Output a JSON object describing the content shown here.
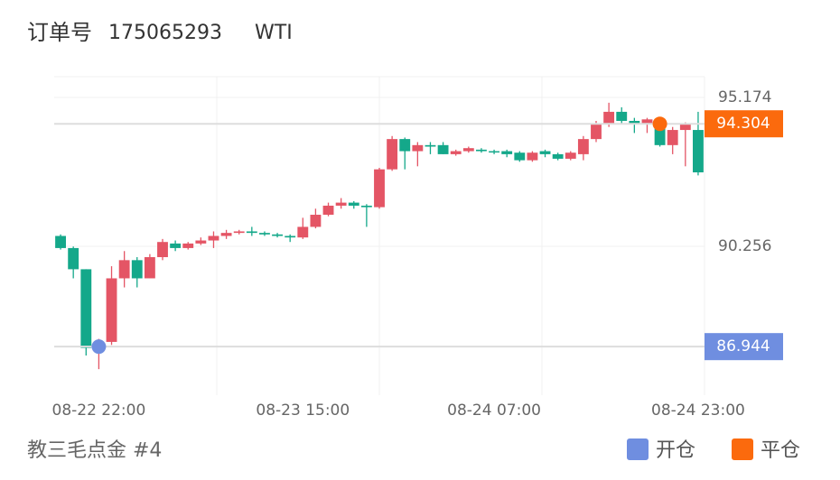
{
  "header": {
    "order_label": "订单号",
    "order_no": "175065293",
    "symbol": "WTI"
  },
  "footer": "教三毛点金 #4",
  "chart_data": {
    "type": "candlestick",
    "categories": [
      null,
      null,
      null,
      "08-22 22:00",
      null,
      null,
      null,
      null,
      null,
      null,
      null,
      null,
      null,
      null,
      null,
      null,
      null,
      null,
      null,
      "08-23 15:00",
      null,
      null,
      null,
      null,
      null,
      null,
      null,
      null,
      null,
      null,
      null,
      null,
      null,
      null,
      "08-24 07:00",
      null,
      null,
      null,
      null,
      null,
      null,
      null,
      null,
      null,
      null,
      null,
      null,
      null,
      null,
      null,
      "08-24 23:00"
    ],
    "open": [
      90.6,
      90.2,
      89.5,
      86.9,
      87.1,
      89.2,
      89.8,
      89.2,
      89.9,
      90.35,
      90.2,
      90.35,
      90.45,
      90.6,
      90.7,
      90.75,
      90.7,
      90.65,
      90.6,
      90.55,
      90.9,
      91.3,
      91.6,
      91.7,
      91.6,
      91.55,
      92.8,
      93.8,
      93.4,
      93.6,
      93.6,
      93.3,
      93.4,
      93.45,
      93.4,
      93.4,
      93.35,
      93.1,
      93.4,
      93.3,
      93.15,
      93.3,
      93.8,
      94.3,
      94.7,
      94.4,
      94.3,
      94.4,
      93.6,
      94.1,
      94.1
    ],
    "high": [
      90.65,
      90.25,
      89.5,
      87.2,
      89.6,
      90.1,
      89.9,
      90.0,
      90.5,
      90.45,
      90.4,
      90.55,
      90.75,
      90.8,
      90.8,
      90.9,
      90.75,
      90.7,
      90.65,
      91.2,
      91.5,
      91.7,
      91.85,
      91.75,
      91.65,
      92.85,
      93.9,
      93.85,
      93.7,
      93.7,
      93.7,
      93.45,
      93.55,
      93.5,
      93.45,
      93.45,
      93.4,
      93.4,
      93.45,
      93.35,
      93.4,
      93.9,
      94.4,
      95.0,
      94.85,
      94.5,
      94.5,
      94.45,
      94.2,
      94.35,
      94.7
    ],
    "low": [
      90.15,
      89.2,
      86.65,
      86.2,
      87.0,
      88.9,
      88.9,
      89.2,
      89.8,
      90.1,
      90.15,
      90.3,
      90.2,
      90.5,
      90.65,
      90.6,
      90.6,
      90.55,
      90.4,
      90.5,
      90.85,
      91.25,
      91.5,
      91.5,
      90.9,
      91.5,
      92.75,
      92.8,
      92.9,
      93.3,
      93.3,
      93.25,
      93.35,
      93.35,
      93.3,
      93.2,
      93.05,
      93.05,
      93.2,
      93.1,
      93.1,
      93.1,
      93.7,
      94.2,
      94.3,
      94.0,
      94.0,
      93.55,
      93.3,
      92.9,
      92.6
    ],
    "close": [
      90.2,
      89.5,
      86.9,
      87.1,
      89.2,
      89.8,
      89.2,
      89.9,
      90.4,
      90.2,
      90.35,
      90.45,
      90.6,
      90.7,
      90.75,
      90.7,
      90.65,
      90.6,
      90.55,
      90.9,
      91.3,
      91.6,
      91.7,
      91.6,
      91.55,
      92.8,
      93.8,
      93.4,
      93.6,
      93.55,
      93.3,
      93.4,
      93.5,
      93.4,
      93.38,
      93.3,
      93.1,
      93.35,
      93.3,
      93.15,
      93.35,
      93.8,
      94.3,
      94.7,
      94.4,
      94.3,
      94.45,
      93.6,
      94.1,
      94.3,
      92.7
    ],
    "up_color": "#e45565",
    "down_color": "#14a88a",
    "ylim": [
      85.34,
      95.86
    ],
    "yticks": [
      95.174,
      90.256
    ],
    "markers": [
      {
        "name": "开仓",
        "color": "#6f8ee0",
        "value": 86.944,
        "index": 3
      },
      {
        "name": "平仓",
        "color": "#fb6a0d",
        "value": 94.304,
        "index": 47
      }
    ]
  }
}
